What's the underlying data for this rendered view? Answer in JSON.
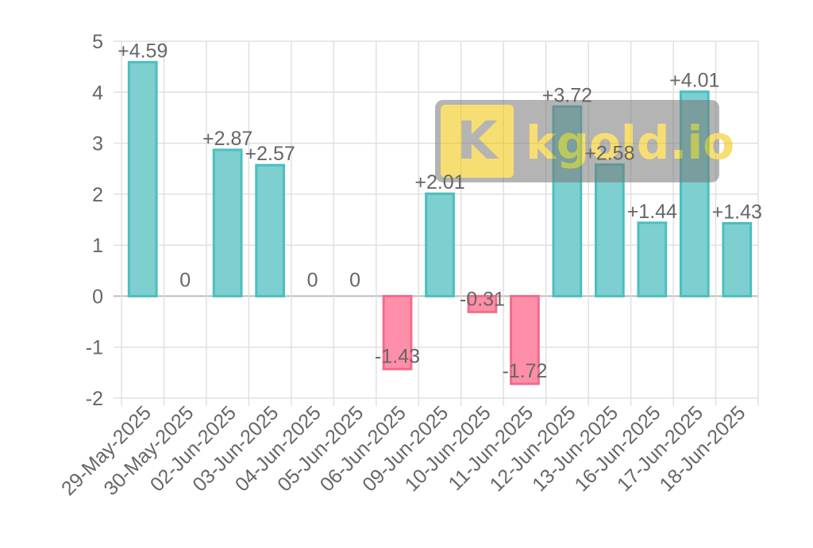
{
  "chart_data": {
    "type": "bar",
    "title": "",
    "xlabel": "",
    "ylabel": "",
    "categories": [
      "29-May-2025",
      "30-May-2025",
      "02-Jun-2025",
      "03-Jun-2025",
      "04-Jun-2025",
      "05-Jun-2025",
      "06-Jun-2025",
      "09-Jun-2025",
      "10-Jun-2025",
      "11-Jun-2025",
      "12-Jun-2025",
      "13-Jun-2025",
      "16-Jun-2025",
      "17-Jun-2025",
      "18-Jun-2025"
    ],
    "values": [
      4.59,
      0,
      2.87,
      2.57,
      0,
      0,
      -1.43,
      2.01,
      -0.31,
      -1.72,
      3.72,
      2.58,
      1.44,
      4.01,
      1.43
    ],
    "data_labels": [
      "+4.59",
      "0",
      "+2.87",
      "+2.57",
      "0",
      "0",
      "-1.43",
      "+2.01",
      "-0.31",
      "-1.72",
      "+3.72",
      "+2.58",
      "+1.44",
      "+4.01",
      "+1.43"
    ],
    "ylim": [
      -2,
      5
    ],
    "yticks": [
      5,
      4,
      3,
      2,
      1,
      0,
      -1,
      -2
    ],
    "grid": true,
    "colors": {
      "positive_fill": "#7ecfcf",
      "positive_stroke": "#4bbfbf",
      "negative_fill": "#ff8fa8",
      "negative_stroke": "#f26b8a",
      "grid": "#e0e0e0",
      "text": "#666666"
    }
  },
  "watermark": {
    "text": "kgold.io",
    "logo_letter": "K"
  }
}
